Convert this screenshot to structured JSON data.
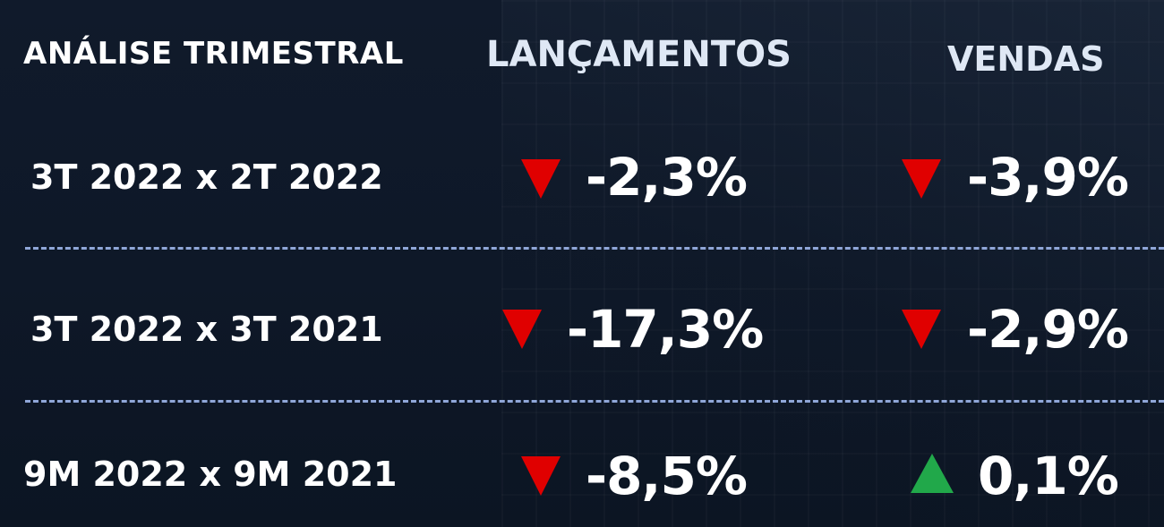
{
  "header": {
    "title": "ANÁLISE TRIMESTRAL",
    "col_launches": "LANÇAMENTOS",
    "col_sales": "VENDAS"
  },
  "colors": {
    "down": "#e00000",
    "up": "#21a84a",
    "divider": "#8fa6d8"
  },
  "rows": [
    {
      "label": "3T 2022 x 2T 2022",
      "launches": {
        "value": "-2,3%",
        "direction": "down"
      },
      "sales": {
        "value": "-3,9%",
        "direction": "down"
      }
    },
    {
      "label": "3T 2022 x 3T 2021",
      "launches": {
        "value": "-17,3%",
        "direction": "down"
      },
      "sales": {
        "value": "-2,9%",
        "direction": "down"
      }
    },
    {
      "label": "9M 2022 x 9M 2021",
      "launches": {
        "value": "-8,5%",
        "direction": "down"
      },
      "sales": {
        "value": "0,1%",
        "direction": "up"
      }
    }
  ]
}
